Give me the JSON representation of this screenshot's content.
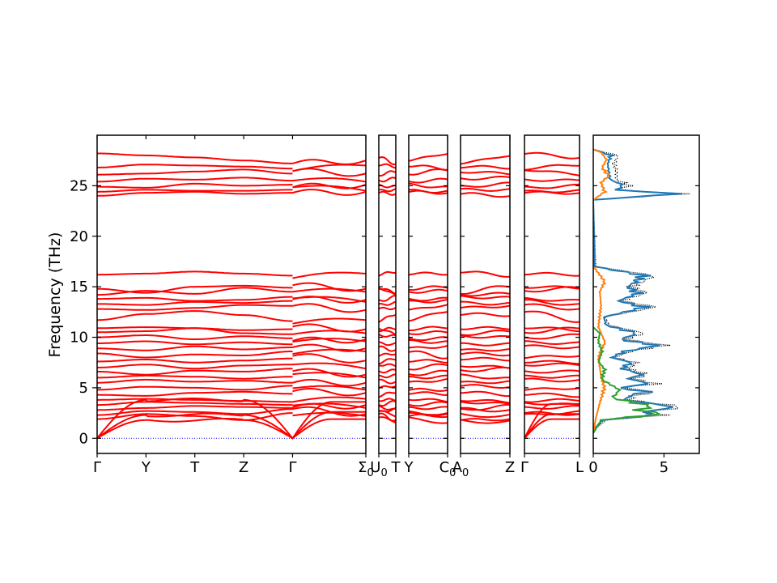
{
  "chart_data": {
    "type": "line",
    "ylabel": "Frequency (THz)",
    "ylim": [
      -1.5,
      30
    ],
    "yticks": [
      0,
      5,
      10,
      15,
      20,
      25
    ],
    "band_color": "#ff0000",
    "zero_line_color": "#0000ff",
    "band_panels": [
      {
        "id": "p1",
        "xlim": [
          0,
          4
        ],
        "labels": [
          {
            "x": 0,
            "text": "Γ"
          },
          {
            "x": 1,
            "text": "Y"
          },
          {
            "x": 2,
            "text": "T"
          },
          {
            "x": 3,
            "text": "Z"
          },
          {
            "x": 4,
            "text": "Γ"
          }
        ]
      },
      {
        "id": "p2",
        "xlim": [
          4,
          5.5
        ],
        "labels": [
          {
            "x": 5.5,
            "text": "Σ",
            "sub": "0"
          }
        ],
        "note": "continuation of Γ→Σ0 path"
      },
      {
        "id": "p3",
        "xlim": [
          0,
          1
        ],
        "labels": [
          {
            "x": 0,
            "text": "U",
            "sub": "0"
          },
          {
            "x": 1,
            "text": "T"
          }
        ]
      },
      {
        "id": "p4",
        "xlim": [
          0,
          1
        ],
        "labels": [
          {
            "x": 0,
            "text": "Y"
          },
          {
            "x": 1,
            "text": "C",
            "sub": "0"
          }
        ]
      },
      {
        "id": "p5",
        "xlim": [
          0,
          1
        ],
        "labels": [
          {
            "x": 0,
            "text": "A",
            "sub": "0"
          },
          {
            "x": 1,
            "text": "Z"
          }
        ]
      },
      {
        "id": "p6",
        "xlim": [
          0,
          1
        ],
        "labels": [
          {
            "x": 0,
            "text": "Γ"
          },
          {
            "x": 1,
            "text": "L"
          }
        ]
      }
    ],
    "bands_optical_nodes": [
      [
        1.9,
        2.4,
        2.2,
        1.8,
        2.5
      ],
      [
        2.3,
        2.7,
        2.6,
        2.4,
        2.9
      ],
      [
        2.8,
        3.0,
        3.2,
        3.1,
        3.0
      ],
      [
        3.3,
        3.6,
        3.5,
        3.4,
        3.3
      ],
      [
        3.8,
        3.9,
        3.8,
        3.7,
        3.6
      ],
      [
        4.3,
        4.2,
        4.5,
        4.6,
        4.4
      ],
      [
        4.8,
        5.1,
        5.0,
        4.8,
        5.2
      ],
      [
        5.5,
        5.8,
        5.6,
        5.7,
        5.5
      ],
      [
        6.0,
        6.2,
        6.1,
        5.9,
        6.1
      ],
      [
        6.6,
        6.3,
        6.7,
        6.6,
        6.9
      ],
      [
        7.0,
        7.3,
        6.9,
        7.2,
        7.3
      ],
      [
        7.6,
        7.8,
        7.5,
        7.7,
        7.9
      ],
      [
        8.4,
        8.0,
        8.3,
        8.2,
        8.6
      ],
      [
        8.9,
        8.7,
        9.1,
        8.8,
        9.0
      ],
      [
        9.4,
        9.6,
        9.3,
        9.5,
        9.3
      ],
      [
        10.0,
        10.2,
        9.8,
        10.1,
        9.9
      ],
      [
        10.5,
        10.6,
        10.9,
        10.4,
        10.3
      ],
      [
        10.9,
        11.0,
        10.9,
        10.7,
        10.8
      ],
      [
        11.7,
        12.3,
        12.6,
        12.2,
        11.6
      ],
      [
        12.8,
        12.7,
        12.9,
        13.2,
        13.1
      ],
      [
        13.3,
        13.2,
        13.5,
        13.4,
        13.6
      ],
      [
        13.8,
        13.9,
        13.6,
        13.7,
        14.0
      ],
      [
        14.2,
        14.6,
        14.3,
        14.9,
        14.5
      ],
      [
        14.8,
        14.4,
        15.0,
        15.1,
        14.9
      ],
      [
        16.2,
        16.3,
        16.5,
        16.3,
        16.1
      ],
      [
        24.0,
        24.3,
        24.4,
        24.2,
        24.3
      ],
      [
        24.4,
        24.6,
        24.5,
        24.5,
        24.6
      ],
      [
        24.9,
        24.8,
        25.2,
        25.0,
        25.1
      ],
      [
        25.4,
        25.7,
        25.6,
        25.8,
        25.5
      ],
      [
        26.1,
        26.2,
        26.4,
        26.6,
        26.2
      ],
      [
        26.8,
        27.1,
        27.0,
        26.9,
        26.7
      ],
      [
        28.2,
        28.0,
        27.8,
        27.5,
        27.2
      ]
    ],
    "dos": {
      "xlim": [
        0,
        7.5
      ],
      "xticks": [
        0,
        5
      ],
      "ylim": [
        -1.5,
        30
      ],
      "series": [
        {
          "color": "#000000",
          "style": "dotted",
          "points": [
            [
              0.0,
              0.5
            ],
            [
              0.2,
              1.0
            ],
            [
              1.0,
              1.8
            ],
            [
              5.5,
              2.3
            ],
            [
              4.2,
              2.6
            ],
            [
              7.0,
              3.1
            ],
            [
              4.5,
              3.5
            ],
            [
              2.8,
              3.8
            ],
            [
              3.2,
              4.2
            ],
            [
              4.8,
              4.6
            ],
            [
              2.3,
              5.0
            ],
            [
              4.9,
              5.4
            ],
            [
              3.1,
              5.9
            ],
            [
              4.2,
              6.3
            ],
            [
              2.7,
              6.9
            ],
            [
              3.3,
              7.5
            ],
            [
              1.6,
              8.0
            ],
            [
              2.9,
              8.6
            ],
            [
              5.6,
              9.2
            ],
            [
              2.5,
              9.8
            ],
            [
              3.9,
              10.4
            ],
            [
              1.2,
              11.2
            ],
            [
              0.9,
              12.0
            ],
            [
              4.8,
              13.0
            ],
            [
              2.2,
              13.6
            ],
            [
              4.1,
              14.4
            ],
            [
              3.0,
              15.0
            ],
            [
              4.7,
              16.1
            ],
            [
              0.2,
              17.0
            ],
            [
              0.0,
              23.6
            ],
            [
              7.1,
              24.2
            ],
            [
              2.0,
              24.6
            ],
            [
              2.9,
              25.0
            ],
            [
              1.8,
              25.6
            ],
            [
              1.8,
              26.3
            ],
            [
              1.6,
              27.2
            ],
            [
              1.9,
              28.0
            ],
            [
              0.0,
              28.6
            ]
          ]
        },
        {
          "color": "#1f77b4",
          "style": "solid",
          "points": [
            [
              0.0,
              0.5
            ],
            [
              0.1,
              1.0
            ],
            [
              0.8,
              1.8
            ],
            [
              4.7,
              2.3
            ],
            [
              3.8,
              2.6
            ],
            [
              6.3,
              3.1
            ],
            [
              4.1,
              3.5
            ],
            [
              2.4,
              3.8
            ],
            [
              2.8,
              4.2
            ],
            [
              4.2,
              4.6
            ],
            [
              2.0,
              5.0
            ],
            [
              4.3,
              5.4
            ],
            [
              2.7,
              5.9
            ],
            [
              3.7,
              6.3
            ],
            [
              2.3,
              6.9
            ],
            [
              2.9,
              7.5
            ],
            [
              1.4,
              8.0
            ],
            [
              2.5,
              8.6
            ],
            [
              4.9,
              9.2
            ],
            [
              2.1,
              9.8
            ],
            [
              3.4,
              10.4
            ],
            [
              1.0,
              11.2
            ],
            [
              0.8,
              12.0
            ],
            [
              4.1,
              13.0
            ],
            [
              1.9,
              13.6
            ],
            [
              3.6,
              14.4
            ],
            [
              2.6,
              15.0
            ],
            [
              4.1,
              16.1
            ],
            [
              0.1,
              17.0
            ],
            [
              0.0,
              23.6
            ],
            [
              6.4,
              24.2
            ],
            [
              1.7,
              24.6
            ],
            [
              2.4,
              25.0
            ],
            [
              1.3,
              25.6
            ],
            [
              1.2,
              26.3
            ],
            [
              1.1,
              27.2
            ],
            [
              1.4,
              28.0
            ],
            [
              0.0,
              28.6
            ]
          ]
        },
        {
          "color": "#ff7f0e",
          "style": "solid",
          "points": [
            [
              0.0,
              0.5
            ],
            [
              0.2,
              2.0
            ],
            [
              0.5,
              3.5
            ],
            [
              0.9,
              5.0
            ],
            [
              0.6,
              6.0
            ],
            [
              0.4,
              8.0
            ],
            [
              0.9,
              9.5
            ],
            [
              0.4,
              11.0
            ],
            [
              0.6,
              13.0
            ],
            [
              0.5,
              14.5
            ],
            [
              0.9,
              15.5
            ],
            [
              0.5,
              16.2
            ],
            [
              0.0,
              17.0
            ],
            [
              0.0,
              23.6
            ],
            [
              0.9,
              24.4
            ],
            [
              0.6,
              25.3
            ],
            [
              1.2,
              26.0
            ],
            [
              0.7,
              26.8
            ],
            [
              1.0,
              27.6
            ],
            [
              0.6,
              28.3
            ],
            [
              0.0,
              28.6
            ]
          ]
        },
        {
          "color": "#2ca02c",
          "style": "solid",
          "points": [
            [
              0.0,
              0.5
            ],
            [
              0.6,
              1.8
            ],
            [
              5.3,
              2.4
            ],
            [
              3.6,
              2.8
            ],
            [
              4.5,
              3.2
            ],
            [
              1.5,
              4.0
            ],
            [
              2.0,
              4.8
            ],
            [
              0.7,
              5.8
            ],
            [
              0.9,
              6.8
            ],
            [
              0.4,
              7.6
            ],
            [
              0.7,
              8.6
            ],
            [
              0.4,
              9.6
            ],
            [
              0.5,
              10.4
            ],
            [
              0.0,
              11.0
            ]
          ]
        }
      ]
    }
  }
}
